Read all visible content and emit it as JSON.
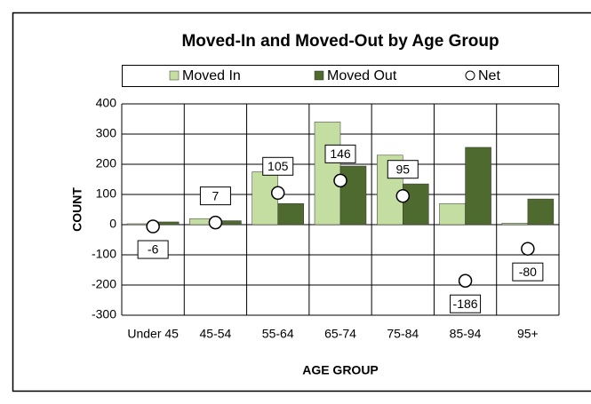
{
  "chart_data": {
    "type": "bar",
    "title": "Moved-In and Moved-Out by Age Group",
    "x_label": "AGE GROUP",
    "y_label": "COUNT",
    "categories": [
      "Under 45",
      "45-54",
      "55-64",
      "65-74",
      "75-84",
      "85-94",
      "95+"
    ],
    "series": [
      {
        "name": "Moved In",
        "color": "#c3dea0",
        "values": [
          3,
          20,
          175,
          340,
          230,
          70,
          5
        ]
      },
      {
        "name": "Moved Out",
        "color": "#4f6a2e",
        "values": [
          9,
          13,
          70,
          194,
          135,
          256,
          85
        ]
      },
      {
        "name": "Net",
        "type": "marker",
        "color": "#ffffff",
        "values": [
          -6,
          7,
          105,
          146,
          95,
          -186,
          -80
        ]
      }
    ],
    "ylim": [
      -300,
      400
    ],
    "yticks": [
      -300,
      -200,
      -100,
      0,
      100,
      200,
      300,
      400
    ],
    "grid": true,
    "legend": "top"
  }
}
